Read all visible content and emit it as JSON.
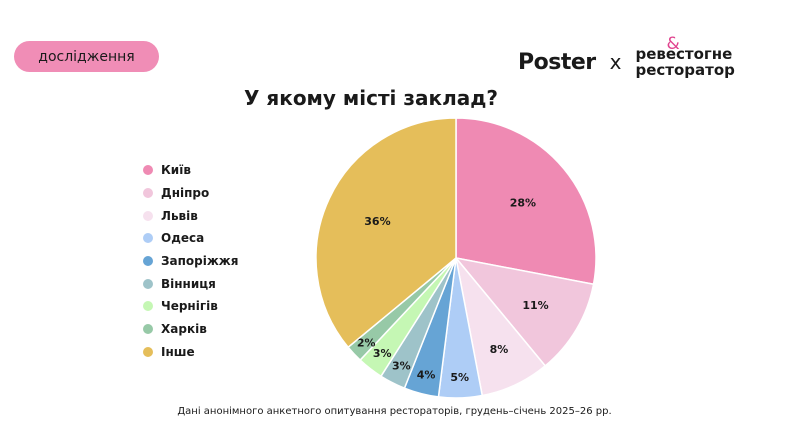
{
  "header": {
    "badge_label": "дослідження",
    "brand_logo": "Poster",
    "brand_separator": "x",
    "partner_logo_line1": "ревестогне",
    "partner_logo_line2": "ресторатор",
    "partner_logo_mark": "&"
  },
  "footnote": "Дані анонімного анкетного опитування рестораторів, грудень–січень 2025–26 рр.",
  "chart_data": {
    "type": "pie",
    "title": "У якому місті заклад?",
    "legend_position": "left",
    "labels": [
      "Київ",
      "Дніпро",
      "Львів",
      "Одеса",
      "Запоріжжя",
      "Вінниця",
      "Чернігів",
      "Харків",
      "Інше"
    ],
    "values": [
      28,
      11,
      8,
      5,
      4,
      3,
      3,
      2,
      36
    ],
    "colors": [
      "#ef8ab3",
      "#f1c6dc",
      "#f6e1ee",
      "#aecdf6",
      "#66a4d5",
      "#9ec3c9",
      "#c5f7b4",
      "#97c9a7",
      "#e5be5a"
    ],
    "value_labels": [
      "28%",
      "11%",
      "8%",
      "5%",
      "4%",
      "3%",
      "3%",
      "2%",
      "36%"
    ]
  }
}
